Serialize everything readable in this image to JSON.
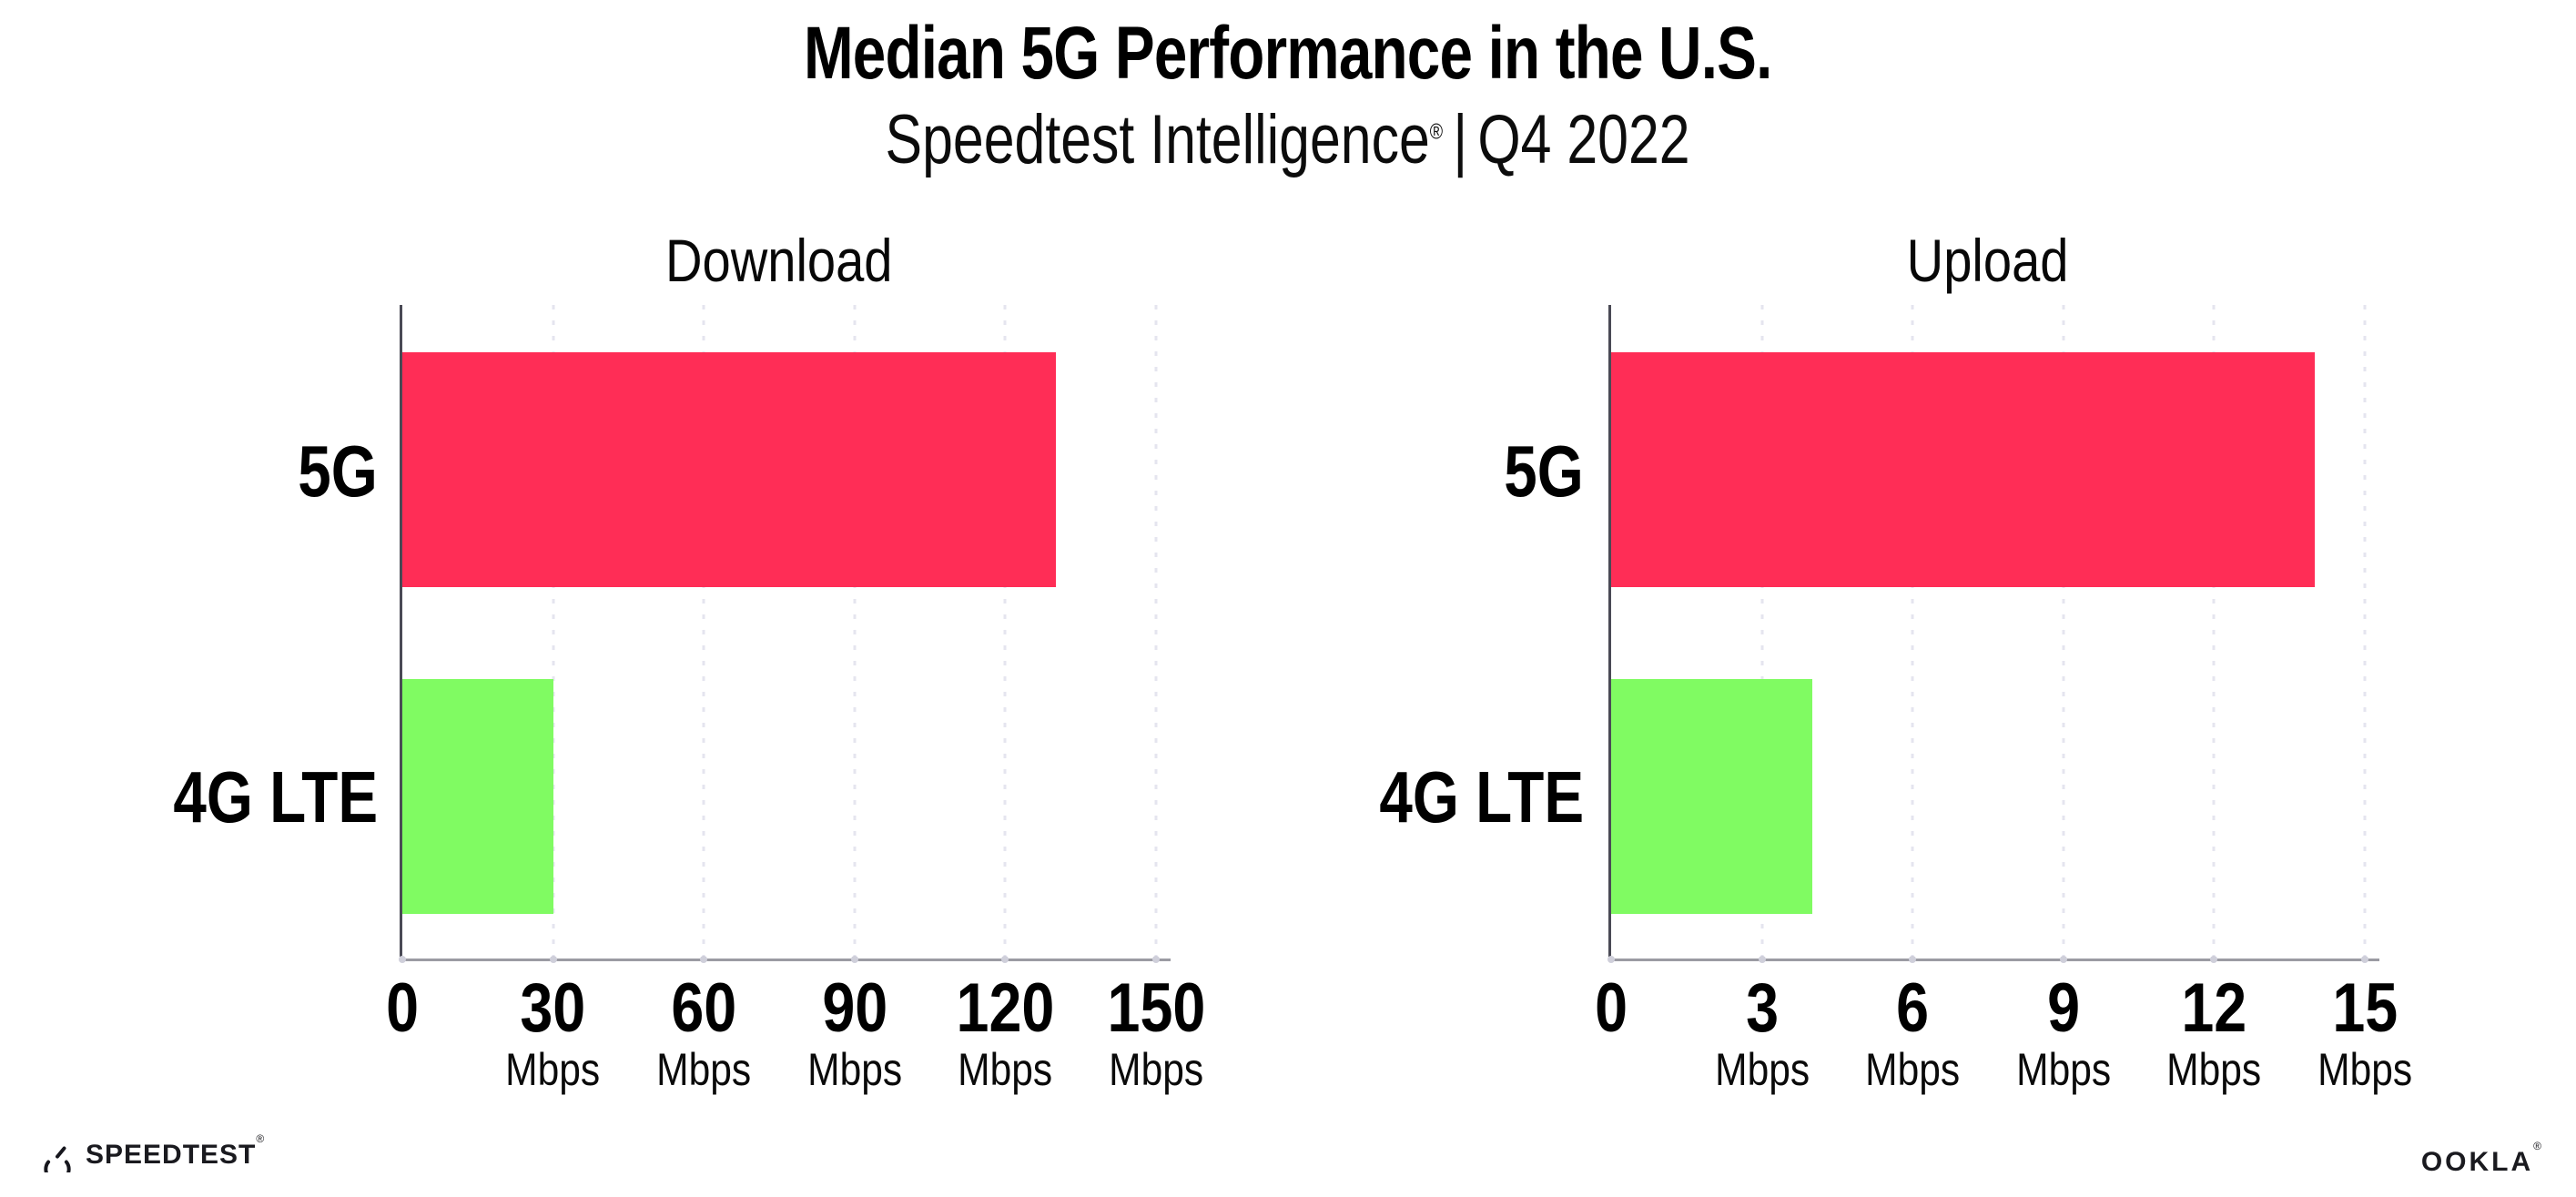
{
  "header": {
    "title": "Median 5G Performance in the U.S.",
    "subtitle_brand": "Speedtest Intelligence",
    "subtitle_registered": "®",
    "subtitle_separator": "|",
    "subtitle_period": "Q4 2022"
  },
  "charts": [
    {
      "title": "Download",
      "xmax": 150,
      "unit": "Mbps",
      "ticks": [
        {
          "label": "0",
          "unit": ""
        },
        {
          "label": "30",
          "unit": "Mbps"
        },
        {
          "label": "60",
          "unit": "Mbps"
        },
        {
          "label": "90",
          "unit": "Mbps"
        },
        {
          "label": "120",
          "unit": "Mbps"
        },
        {
          "label": "150",
          "unit": "Mbps"
        }
      ],
      "bars": [
        {
          "label": "5G",
          "value": 130,
          "color": "#ff2d56"
        },
        {
          "label": "4G LTE",
          "value": 30,
          "color": "#80fb62"
        }
      ]
    },
    {
      "title": "Upload",
      "xmax": 15,
      "unit": "Mbps",
      "ticks": [
        {
          "label": "0",
          "unit": ""
        },
        {
          "label": "3",
          "unit": "Mbps"
        },
        {
          "label": "6",
          "unit": "Mbps"
        },
        {
          "label": "9",
          "unit": "Mbps"
        },
        {
          "label": "12",
          "unit": "Mbps"
        },
        {
          "label": "15",
          "unit": "Mbps"
        }
      ],
      "bars": [
        {
          "label": "5G",
          "value": 14,
          "color": "#ff2d56"
        },
        {
          "label": "4G LTE",
          "value": 4,
          "color": "#80fb62"
        }
      ]
    }
  ],
  "footer": {
    "speedtest_label": "SPEEDTEST",
    "speedtest_registered": "®",
    "ookla_label": "OOKLA",
    "ookla_registered": "®"
  },
  "colors": {
    "bar_5g": "#ff2d56",
    "bar_4g": "#80fb62",
    "gridline": "#e5e5ef",
    "x_axis": "#9b9ba3",
    "y_axis": "#4a4a55",
    "text": "#000000"
  },
  "chart_data": [
    {
      "type": "bar",
      "orientation": "horizontal",
      "title": "Download",
      "categories": [
        "5G",
        "4G LTE"
      ],
      "values": [
        130,
        30
      ],
      "unit": "Mbps",
      "xlim": [
        0,
        150
      ],
      "xticks": [
        0,
        30,
        60,
        90,
        120,
        150
      ],
      "bar_colors": [
        "#ff2d56",
        "#80fb62"
      ],
      "grid": "vertical dotted gridlines at each tick",
      "legend": "none"
    },
    {
      "type": "bar",
      "orientation": "horizontal",
      "title": "Upload",
      "categories": [
        "5G",
        "4G LTE"
      ],
      "values": [
        14,
        4
      ],
      "unit": "Mbps",
      "xlim": [
        0,
        15
      ],
      "xticks": [
        0,
        3,
        6,
        9,
        12,
        15
      ],
      "bar_colors": [
        "#ff2d56",
        "#80fb62"
      ],
      "grid": "vertical dotted gridlines at each tick",
      "legend": "none"
    }
  ]
}
